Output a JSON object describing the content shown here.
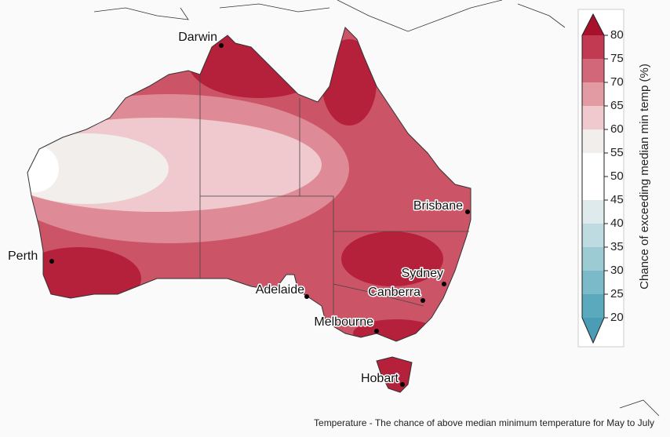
{
  "map": {
    "cities": [
      {
        "name": "Darwin"
      },
      {
        "name": "Perth"
      },
      {
        "name": "Brisbane"
      },
      {
        "name": "Sydney"
      },
      {
        "name": "Canberra"
      },
      {
        "name": "Adelaide"
      },
      {
        "name": "Melbourne"
      },
      {
        "name": "Hobart"
      }
    ],
    "caption": "Temperature - The chance of above median minimum temperature for May to July"
  },
  "colorbar": {
    "label": "Chance of exceeding median min temp (%)",
    "ticks": [
      20,
      25,
      30,
      35,
      40,
      45,
      50,
      55,
      60,
      65,
      70,
      75,
      80
    ],
    "colors": [
      "#5aa9bd",
      "#7bbac8",
      "#9ccbd4",
      "#bddbe0",
      "#dfeaec",
      "#ffffff",
      "#ffffff",
      "#f2eeeb",
      "#efc9cd",
      "#e29aa3",
      "#d3677a",
      "#c13a52"
    ],
    "under_color": "#4a9db5",
    "over_color": "#a8112c"
  }
}
